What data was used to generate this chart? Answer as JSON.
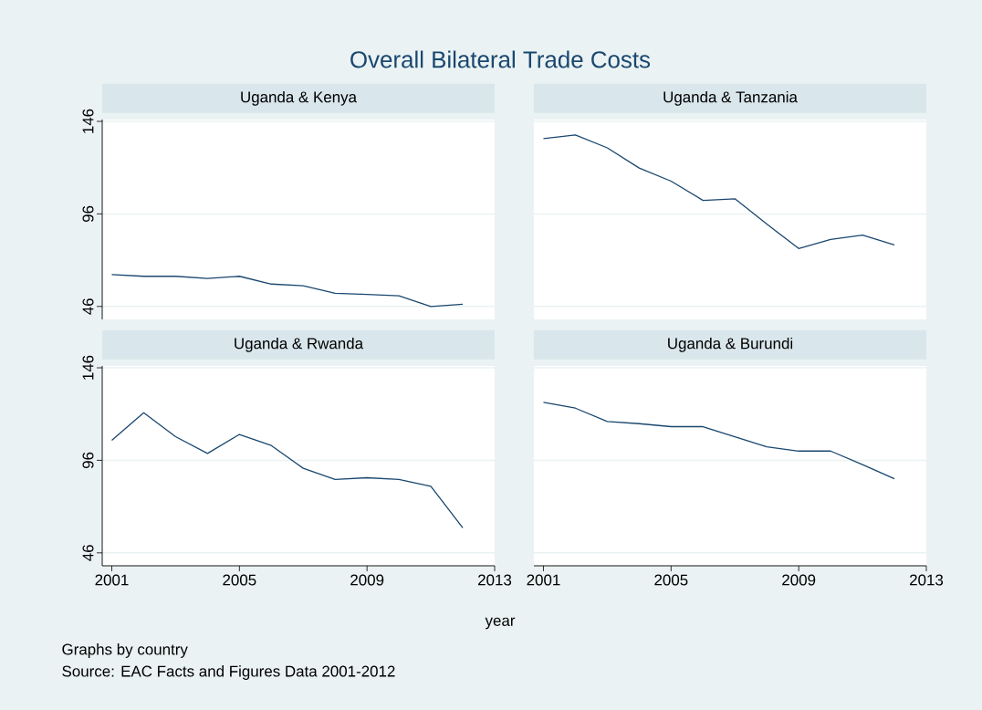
{
  "chart_data": [
    {
      "type": "line",
      "title": "Uganda & Kenya",
      "color": "#1a476f",
      "x": [
        2001,
        2002,
        2003,
        2004,
        2005,
        2006,
        2007,
        2008,
        2009,
        2010,
        2011,
        2012
      ],
      "values": [
        63.2,
        62.3,
        62.3,
        61.1,
        62.3,
        58.1,
        57.2,
        53.1,
        52.5,
        51.8,
        46,
        47.2
      ],
      "xlim": [
        2000.7,
        2013
      ],
      "ylim": [
        39,
        147
      ],
      "xticks": [
        2001,
        2005,
        2009,
        2013
      ],
      "yticks": [
        46,
        96,
        146
      ],
      "grid": "y",
      "tick_labels": "y"
    },
    {
      "type": "line",
      "title": "Uganda & Tanzania",
      "color": "#1a476f",
      "x": [
        2001,
        2002,
        2003,
        2004,
        2005,
        2006,
        2007,
        2008,
        2009,
        2010,
        2011,
        2012
      ],
      "values": [
        136.7,
        138.7,
        131.7,
        120.8,
        113.7,
        103.3,
        104.2,
        90.5,
        77.3,
        82.2,
        84.5,
        79.2
      ],
      "xlim": [
        2000.7,
        2013
      ],
      "ylim": [
        39,
        147
      ],
      "xticks": [
        2001,
        2005,
        2009,
        2013
      ],
      "yticks": [
        46,
        96,
        146
      ],
      "grid": "y",
      "tick_labels": false
    },
    {
      "type": "line",
      "title": "Uganda & Rwanda",
      "color": "#1a476f",
      "x": [
        2001,
        2002,
        2003,
        2004,
        2005,
        2006,
        2007,
        2008,
        2009,
        2010,
        2011,
        2012
      ],
      "values": [
        106.8,
        121.7,
        108.8,
        99.7,
        110,
        104,
        91.7,
        85.7,
        86.6,
        85.7,
        82,
        59.5
      ],
      "xlim": [
        2000.7,
        2013
      ],
      "ylim": [
        39,
        147
      ],
      "xticks": [
        2001,
        2005,
        2009,
        2013
      ],
      "yticks": [
        46,
        96,
        146
      ],
      "grid": "y"
    },
    {
      "type": "line",
      "title": "Uganda & Burundi",
      "color": "#1a476f",
      "x": [
        2001,
        2002,
        2003,
        2004,
        2005,
        2006,
        2007,
        2008,
        2009,
        2010,
        2011,
        2012
      ],
      "values": [
        127.3,
        124.2,
        117,
        115.8,
        114.2,
        114.2,
        108.7,
        103.3,
        101,
        101,
        93.7,
        86
      ],
      "xlim": [
        2000.7,
        2013
      ],
      "ylim": [
        39,
        147
      ],
      "xticks": [
        2001,
        2005,
        2009,
        2013
      ],
      "yticks": [
        46,
        96,
        146
      ],
      "grid": "y",
      "tick_labels": "x"
    },
    {
      "type": "other",
      "title": "Overall Bilateral Trade Costs",
      "xlabel": "year",
      "annotations": [
        "Graphs by country",
        "Source: EAC Facts and Figures Data 2001-2012"
      ]
    }
  ]
}
